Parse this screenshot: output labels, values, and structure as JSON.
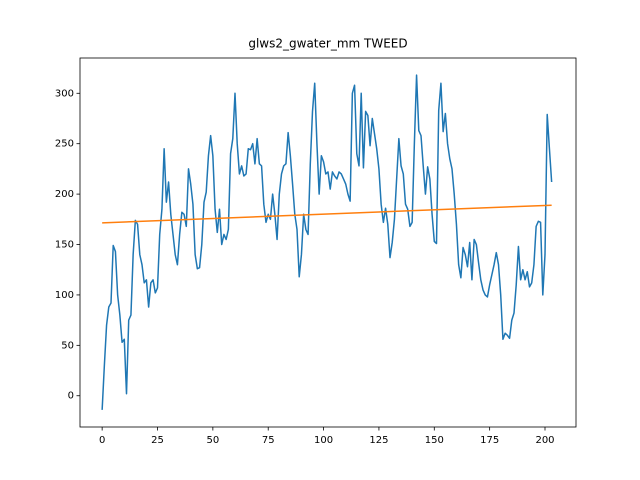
{
  "chart_data": {
    "type": "line",
    "title": "glws2_gwater_mm TWEED",
    "x": [
      0,
      1,
      2,
      3,
      4,
      5,
      6,
      7,
      8,
      9,
      10,
      11,
      12,
      13,
      14,
      15,
      16,
      17,
      18,
      19,
      20,
      21,
      22,
      23,
      24,
      25,
      26,
      27,
      28,
      29,
      30,
      31,
      32,
      33,
      34,
      35,
      36,
      37,
      38,
      39,
      40,
      41,
      42,
      43,
      44,
      45,
      46,
      47,
      48,
      49,
      50,
      51,
      52,
      53,
      54,
      55,
      56,
      57,
      58,
      59,
      60,
      61,
      62,
      63,
      64,
      65,
      66,
      67,
      68,
      69,
      70,
      71,
      72,
      73,
      74,
      75,
      76,
      77,
      78,
      79,
      80,
      81,
      82,
      83,
      84,
      85,
      86,
      87,
      88,
      89,
      90,
      91,
      92,
      93,
      94,
      95,
      96,
      97,
      98,
      99,
      100,
      101,
      102,
      103,
      104,
      105,
      106,
      107,
      108,
      109,
      110,
      111,
      112,
      113,
      114,
      115,
      116,
      117,
      118,
      119,
      120,
      121,
      122,
      123,
      124,
      125,
      126,
      127,
      128,
      129,
      130,
      131,
      132,
      133,
      134,
      135,
      136,
      137,
      138,
      139,
      140,
      141,
      142,
      143,
      144,
      145,
      146,
      147,
      148,
      149,
      150,
      151,
      152,
      153,
      154,
      155,
      156,
      157,
      158,
      159,
      160,
      161,
      162,
      163,
      164,
      165,
      166,
      167,
      168,
      169,
      170,
      171,
      172,
      173,
      174,
      175,
      176,
      177,
      178,
      179,
      180,
      181,
      182,
      183,
      184,
      185,
      186,
      187,
      188,
      189,
      190,
      191,
      192,
      193,
      194,
      195,
      196,
      197,
      198,
      199,
      200,
      201,
      202,
      203
    ],
    "series": [
      {
        "color": "#1f77b4",
        "values": [
          -14,
          30,
          70,
          88,
          92,
          149,
          143,
          100,
          80,
          53,
          56,
          2,
          75,
          80,
          140,
          174,
          170,
          140,
          130,
          112,
          115,
          88,
          112,
          115,
          102,
          107,
          160,
          185,
          245,
          192,
          212,
          180,
          160,
          140,
          130,
          160,
          182,
          180,
          168,
          225,
          210,
          190,
          140,
          126,
          127,
          150,
          192,
          202,
          238,
          258,
          238,
          185,
          162,
          185,
          150,
          160,
          155,
          165,
          240,
          255,
          300,
          250,
          220,
          228,
          218,
          220,
          245,
          244,
          250,
          230,
          255,
          230,
          228,
          190,
          172,
          180,
          175,
          200,
          180,
          155,
          200,
          220,
          228,
          230,
          261,
          238,
          210,
          180,
          165,
          118,
          140,
          180,
          165,
          160,
          230,
          282,
          310,
          250,
          200,
          238,
          232,
          220,
          222,
          205,
          222,
          218,
          215,
          222,
          220,
          215,
          210,
          200,
          193,
          300,
          308,
          240,
          228,
          300,
          226,
          282,
          278,
          248,
          275,
          260,
          245,
          225,
          190,
          172,
          186,
          170,
          137,
          152,
          175,
          215,
          255,
          228,
          220,
          190,
          185,
          168,
          172,
          250,
          318,
          263,
          258,
          228,
          200,
          227,
          215,
          180,
          153,
          151,
          283,
          310,
          262,
          280,
          250,
          235,
          225,
          200,
          170,
          130,
          117,
          147,
          140,
          128,
          152,
          115,
          155,
          150,
          132,
          115,
          105,
          100,
          98,
          110,
          120,
          130,
          142,
          130,
          100,
          56,
          62,
          60,
          57,
          75,
          82,
          110,
          148,
          115,
          125,
          115,
          123,
          108,
          112,
          130,
          168,
          173,
          172,
          100,
          140,
          279,
          245,
          212
        ]
      },
      {
        "color": "#ff7f0e",
        "x": [
          0,
          203
        ],
        "values": [
          171.5,
          189
        ]
      }
    ],
    "xlim": [
      -10,
      214
    ],
    "xticks": [
      0,
      25,
      50,
      75,
      100,
      125,
      150,
      175,
      200
    ],
    "ylim": [
      -31,
      335
    ],
    "yticks": [
      0,
      50,
      100,
      150,
      200,
      250,
      300
    ]
  }
}
